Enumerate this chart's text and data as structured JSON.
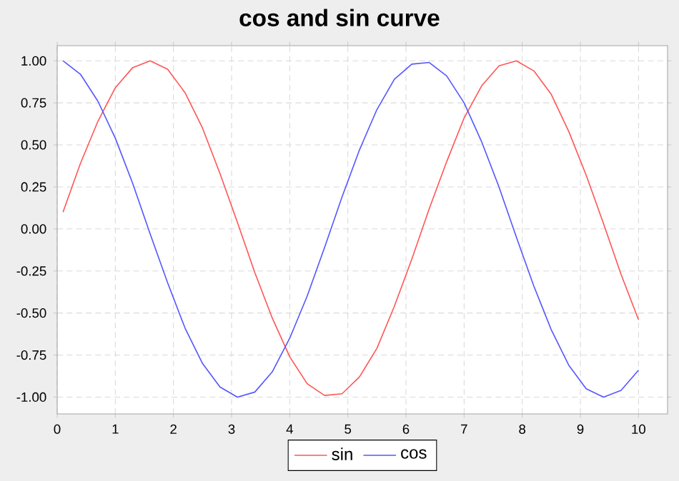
{
  "chart_data": {
    "type": "line",
    "title": "cos and sin curve",
    "x": [
      0.1,
      0.4,
      0.7,
      1.0,
      1.3,
      1.6,
      1.9,
      2.2,
      2.5,
      2.8,
      3.1,
      3.4,
      3.7,
      4.0,
      4.3,
      4.6,
      4.9,
      5.2,
      5.5,
      5.8,
      6.1,
      6.4,
      6.7,
      7.0,
      7.3,
      7.6,
      7.9,
      8.2,
      8.5,
      8.8,
      9.1,
      9.4,
      9.7,
      10.0
    ],
    "series": [
      {
        "name": "sin",
        "color": "#ff5555",
        "values": [
          0.1,
          0.39,
          0.64,
          0.84,
          0.96,
          1.0,
          0.95,
          0.81,
          0.6,
          0.33,
          0.04,
          -0.26,
          -0.53,
          -0.76,
          -0.92,
          -0.99,
          -0.98,
          -0.88,
          -0.71,
          -0.46,
          -0.18,
          0.12,
          0.4,
          0.66,
          0.85,
          0.97,
          1.0,
          0.94,
          0.8,
          0.58,
          0.32,
          0.03,
          -0.27,
          -0.54
        ]
      },
      {
        "name": "cos",
        "color": "#5555ff",
        "values": [
          1.0,
          0.92,
          0.76,
          0.54,
          0.27,
          -0.03,
          -0.32,
          -0.59,
          -0.8,
          -0.94,
          -1.0,
          -0.97,
          -0.85,
          -0.65,
          -0.4,
          -0.11,
          0.19,
          0.47,
          0.71,
          0.89,
          0.98,
          0.99,
          0.91,
          0.75,
          0.52,
          0.25,
          -0.05,
          -0.34,
          -0.6,
          -0.81,
          -0.95,
          -1.0,
          -0.96,
          -0.84
        ]
      }
    ],
    "xlim": [
      0,
      10.5
    ],
    "ylim": [
      -1.1,
      1.09
    ],
    "xticks": [
      0,
      1,
      2,
      3,
      4,
      5,
      6,
      7,
      8,
      9,
      10
    ],
    "yticks": [
      {
        "value": -1,
        "label": "-1.00"
      },
      {
        "value": -0.75,
        "label": "-0.75"
      },
      {
        "value": -0.5,
        "label": "-0.50"
      },
      {
        "value": -0.25,
        "label": "-0.25"
      },
      {
        "value": 0,
        "label": "0.00"
      },
      {
        "value": 0.25,
        "label": "0.25"
      },
      {
        "value": 0.5,
        "label": "0.50"
      },
      {
        "value": 0.75,
        "label": "0.75"
      },
      {
        "value": 1,
        "label": "1.00"
      }
    ],
    "grid": true,
    "legend": "bottom",
    "marker": "none",
    "line_style": "solid"
  }
}
